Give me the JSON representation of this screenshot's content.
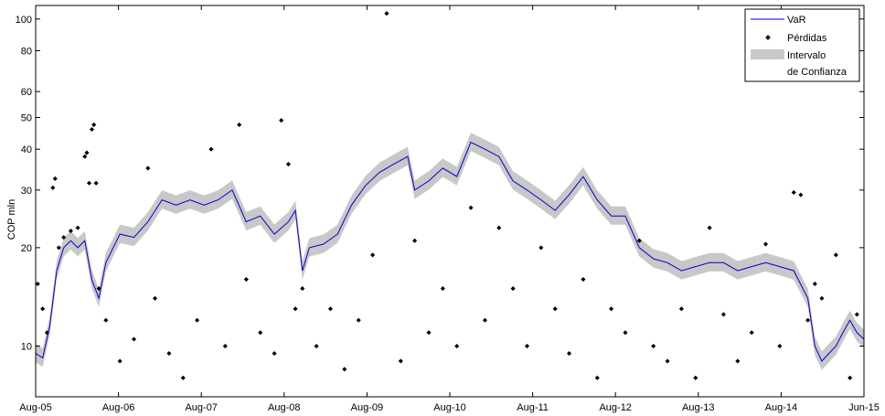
{
  "chart_data": {
    "type": "line",
    "title": "",
    "xlabel": "",
    "ylabel": "COP mln",
    "yscale": "log",
    "ylim": [
      7,
      110
    ],
    "y_ticks": [
      10,
      20,
      30,
      40,
      50,
      60,
      80,
      100
    ],
    "x_ticks": [
      "Aug-05",
      "Aug-06",
      "Aug-07",
      "Aug-08",
      "Aug-09",
      "Aug-10",
      "Aug-11",
      "Aug-12",
      "Aug-13",
      "Aug-14",
      "Jun-15"
    ],
    "x_range": [
      "2005-08",
      "2015-06"
    ],
    "grid": false,
    "legend_position": "top-right",
    "legend": {
      "var_label": "VaR",
      "losses_label": "Pérdidas",
      "interval_label_line1": "Intervalo",
      "interval_label_line2": "de Confianza"
    },
    "colors": {
      "var_line": "#0000cc",
      "interval_band": "#c8c8c8",
      "losses_marker": "#000000"
    },
    "series": [
      {
        "name": "VaR",
        "points": [
          [
            "2005-08-01",
            9.5
          ],
          [
            "2005-09-01",
            9.2
          ],
          [
            "2005-10-01",
            11.5
          ],
          [
            "2005-11-01",
            17
          ],
          [
            "2005-12-01",
            20
          ],
          [
            "2006-01-01",
            21
          ],
          [
            "2006-02-01",
            20
          ],
          [
            "2006-03-01",
            21
          ],
          [
            "2006-04-01",
            16
          ],
          [
            "2006-05-01",
            14
          ],
          [
            "2006-06-01",
            18
          ],
          [
            "2006-08-01",
            22
          ],
          [
            "2006-10-01",
            21.5
          ],
          [
            "2006-12-01",
            24
          ],
          [
            "2007-02-01",
            28
          ],
          [
            "2007-04-01",
            27
          ],
          [
            "2007-06-01",
            28
          ],
          [
            "2007-08-01",
            27
          ],
          [
            "2007-10-01",
            28
          ],
          [
            "2007-12-01",
            30
          ],
          [
            "2008-02-01",
            24
          ],
          [
            "2008-04-01",
            25
          ],
          [
            "2008-06-01",
            22
          ],
          [
            "2008-08-01",
            24
          ],
          [
            "2008-09-01",
            26
          ],
          [
            "2008-10-01",
            17
          ],
          [
            "2008-11-01",
            20
          ],
          [
            "2009-01-01",
            20.5
          ],
          [
            "2009-03-01",
            22
          ],
          [
            "2009-05-01",
            27
          ],
          [
            "2009-07-01",
            31
          ],
          [
            "2009-09-01",
            34
          ],
          [
            "2009-11-01",
            36
          ],
          [
            "2010-01-01",
            38
          ],
          [
            "2010-02-01",
            30
          ],
          [
            "2010-04-01",
            32
          ],
          [
            "2010-06-01",
            35
          ],
          [
            "2010-08-01",
            33
          ],
          [
            "2010-10-01",
            42
          ],
          [
            "2010-12-01",
            40
          ],
          [
            "2011-02-01",
            38
          ],
          [
            "2011-04-01",
            32
          ],
          [
            "2011-06-01",
            30
          ],
          [
            "2011-08-01",
            28
          ],
          [
            "2011-10-01",
            26
          ],
          [
            "2011-12-01",
            29
          ],
          [
            "2012-02-01",
            33
          ],
          [
            "2012-04-01",
            28
          ],
          [
            "2012-06-01",
            25
          ],
          [
            "2012-08-01",
            25
          ],
          [
            "2012-10-01",
            20
          ],
          [
            "2012-12-01",
            18.5
          ],
          [
            "2013-02-01",
            18
          ],
          [
            "2013-04-01",
            17
          ],
          [
            "2013-06-01",
            17.5
          ],
          [
            "2013-08-01",
            18
          ],
          [
            "2013-10-01",
            18
          ],
          [
            "2013-12-01",
            17
          ],
          [
            "2014-02-01",
            17.5
          ],
          [
            "2014-04-01",
            18
          ],
          [
            "2014-06-01",
            17.5
          ],
          [
            "2014-08-01",
            17
          ],
          [
            "2014-10-01",
            14
          ],
          [
            "2014-11-01",
            10
          ],
          [
            "2014-12-01",
            9
          ],
          [
            "2015-01-01",
            9.5
          ],
          [
            "2015-02-01",
            10
          ],
          [
            "2015-03-01",
            11
          ],
          [
            "2015-04-01",
            12
          ],
          [
            "2015-05-01",
            11
          ],
          [
            "2015-06-01",
            10.5
          ]
        ]
      },
      {
        "name": "Pérdidas",
        "points": [
          [
            "2005-08-10",
            15.5
          ],
          [
            "2005-09-01",
            13
          ],
          [
            "2005-09-20",
            11
          ],
          [
            "2005-10-15",
            30.5
          ],
          [
            "2005-10-25",
            32.5
          ],
          [
            "2005-11-10",
            20
          ],
          [
            "2005-12-01",
            21.5
          ],
          [
            "2006-01-01",
            22.5
          ],
          [
            "2006-02-01",
            23
          ],
          [
            "2006-03-01",
            38
          ],
          [
            "2006-03-10",
            39
          ],
          [
            "2006-03-20",
            31.5
          ],
          [
            "2006-04-01",
            46
          ],
          [
            "2006-04-10",
            47.5
          ],
          [
            "2006-04-20",
            31.5
          ],
          [
            "2006-05-01",
            15
          ],
          [
            "2006-06-01",
            12
          ],
          [
            "2006-08-01",
            9
          ],
          [
            "2006-10-01",
            10.5
          ],
          [
            "2006-12-01",
            35
          ],
          [
            "2007-01-01",
            14
          ],
          [
            "2007-03-01",
            9.5
          ],
          [
            "2007-05-01",
            8
          ],
          [
            "2007-07-01",
            12
          ],
          [
            "2007-09-01",
            40
          ],
          [
            "2007-11-01",
            10
          ],
          [
            "2008-01-01",
            47.5
          ],
          [
            "2008-02-01",
            16
          ],
          [
            "2008-04-01",
            11
          ],
          [
            "2008-06-01",
            9.5
          ],
          [
            "2008-07-01",
            49
          ],
          [
            "2008-08-01",
            36
          ],
          [
            "2008-09-01",
            13
          ],
          [
            "2008-10-01",
            15
          ],
          [
            "2008-12-01",
            10
          ],
          [
            "2009-02-01",
            13
          ],
          [
            "2009-04-01",
            8.5
          ],
          [
            "2009-06-01",
            12
          ],
          [
            "2009-08-01",
            19
          ],
          [
            "2009-10-01",
            104
          ],
          [
            "2009-12-01",
            9
          ],
          [
            "2010-02-01",
            21
          ],
          [
            "2010-04-01",
            11
          ],
          [
            "2010-06-01",
            15
          ],
          [
            "2010-08-01",
            10
          ],
          [
            "2010-10-01",
            26.5
          ],
          [
            "2010-12-01",
            12
          ],
          [
            "2011-02-01",
            23
          ],
          [
            "2011-04-01",
            15
          ],
          [
            "2011-06-01",
            10
          ],
          [
            "2011-08-01",
            20
          ],
          [
            "2011-10-01",
            13
          ],
          [
            "2011-12-01",
            9.5
          ],
          [
            "2012-02-01",
            16
          ],
          [
            "2012-04-01",
            8
          ],
          [
            "2012-06-01",
            13
          ],
          [
            "2012-08-01",
            11
          ],
          [
            "2012-10-01",
            21
          ],
          [
            "2012-12-01",
            10
          ],
          [
            "2013-02-01",
            9
          ],
          [
            "2013-04-01",
            13
          ],
          [
            "2013-06-01",
            8
          ],
          [
            "2013-08-01",
            23
          ],
          [
            "2013-10-01",
            12.5
          ],
          [
            "2013-12-01",
            9
          ],
          [
            "2014-02-01",
            11
          ],
          [
            "2014-04-01",
            20.5
          ],
          [
            "2014-06-01",
            10
          ],
          [
            "2014-08-01",
            29.5
          ],
          [
            "2014-09-01",
            29
          ],
          [
            "2014-10-01",
            12
          ],
          [
            "2014-11-01",
            15.5
          ],
          [
            "2014-12-01",
            14
          ],
          [
            "2015-02-01",
            19
          ],
          [
            "2015-04-01",
            8
          ],
          [
            "2015-05-01",
            12.5
          ]
        ]
      }
    ]
  }
}
